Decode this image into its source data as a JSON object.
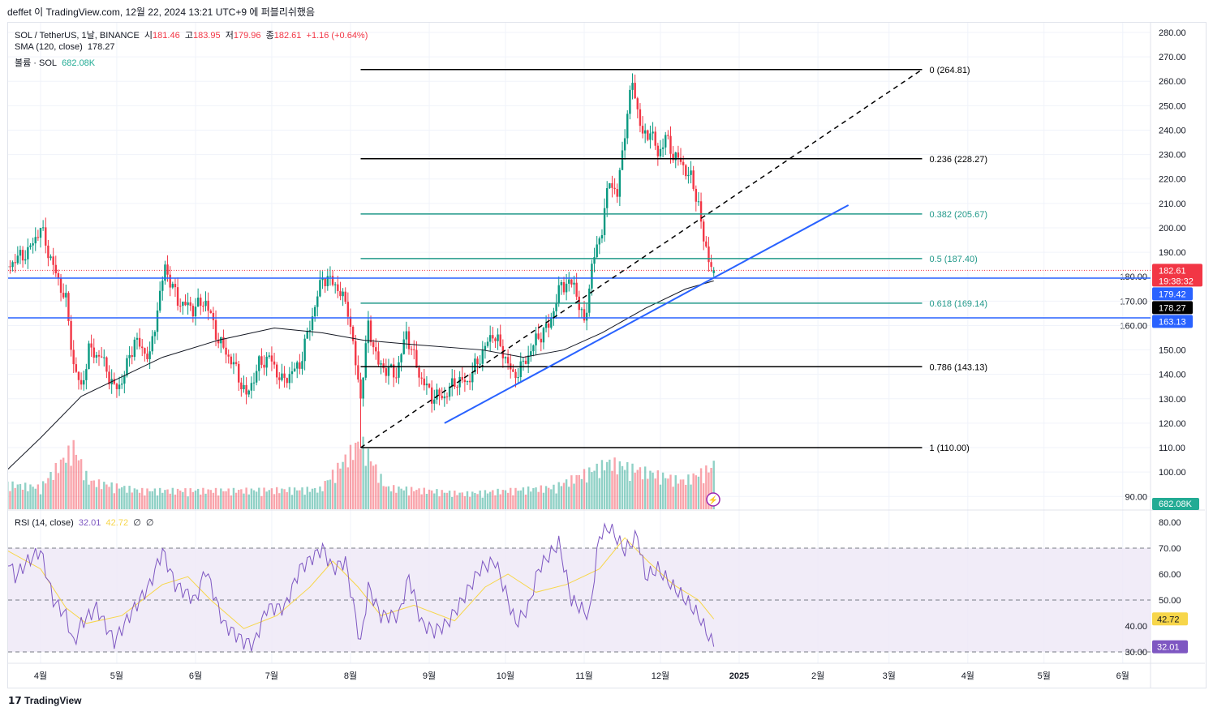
{
  "header": {
    "published": "deffet 이 TradingView.com, 12월 22, 2024 13:21 UTC+9 에 퍼블리쉬했음"
  },
  "legend": {
    "symbol": "SOL / TetherUS, 1날, BINANCE",
    "o_label": "시",
    "o": "181.46",
    "h_label": "고",
    "h": "183.95",
    "l_label": "저",
    "l": "179.96",
    "c_label": "종",
    "c": "182.61",
    "change": "+1.16 (+0.64%)",
    "sma_label": "SMA (120, close)",
    "sma_value": "178.27",
    "vol_label": "볼륨 · SOL",
    "vol_value": "682.08K",
    "rsi_label": "RSI (14, close)",
    "rsi_value": "32.01",
    "rsi_ma_value": "42.72",
    "rsi_extra1": "∅",
    "rsi_extra2": "∅"
  },
  "logo": "TradingView",
  "colors": {
    "up": "#089981",
    "down": "#f23645",
    "sma": "#131722",
    "trend": "#2962ff",
    "fib_black": "#000000",
    "fib_teal": "#22998a",
    "rsi": "#7e57c2",
    "rsi_ma": "#f7d64a",
    "rsi_band": "#ede7f6"
  },
  "chart_data": {
    "type": "candlestick",
    "price_axis": {
      "ticks": [
        "280.00",
        "270.00",
        "260.00",
        "250.00",
        "240.00",
        "230.00",
        "220.00",
        "210.00",
        "200.00",
        "190.00",
        "180.00",
        "170.00",
        "160.00",
        "150.00",
        "140.00",
        "130.00",
        "120.00",
        "110.00",
        "100.00",
        "90.00"
      ],
      "ylim": [
        90,
        280
      ]
    },
    "x_ticks": [
      [
        "2024-04-01",
        "4월"
      ],
      [
        "2024-05-01",
        "5월"
      ],
      [
        "2024-06-01",
        "6월"
      ],
      [
        "2024-07-01",
        "7월"
      ],
      [
        "2024-08-01",
        "8월"
      ],
      [
        "2024-09-01",
        "9월"
      ],
      [
        "2024-10-01",
        "10월"
      ],
      [
        "2024-11-01",
        "11월"
      ],
      [
        "2024-12-01",
        "12월"
      ],
      [
        "2025-01-01",
        "2025"
      ],
      [
        "2025-02-01",
        "2월"
      ],
      [
        "2025-03-01",
        "3월"
      ],
      [
        "2025-04-01",
        "4월"
      ],
      [
        "2025-05-01",
        "5월"
      ],
      [
        "2025-06-01",
        "6월"
      ]
    ],
    "close_keypoints": [
      [
        "2024-03-19",
        184
      ],
      [
        "2024-03-22",
        187
      ],
      [
        "2024-03-27",
        190
      ],
      [
        "2024-04-01",
        200
      ],
      [
        "2024-04-06",
        184
      ],
      [
        "2024-04-11",
        170
      ],
      [
        "2024-04-14",
        144
      ],
      [
        "2024-04-17",
        134
      ],
      [
        "2024-04-20",
        150
      ],
      [
        "2024-04-25",
        147
      ],
      [
        "2024-04-30",
        134
      ],
      [
        "2024-05-03",
        137
      ],
      [
        "2024-05-08",
        154
      ],
      [
        "2024-05-14",
        147
      ],
      [
        "2024-05-17",
        167
      ],
      [
        "2024-05-20",
        184
      ],
      [
        "2024-05-25",
        170
      ],
      [
        "2024-05-31",
        167
      ],
      [
        "2024-06-05",
        170
      ],
      [
        "2024-06-10",
        154
      ],
      [
        "2024-06-16",
        144
      ],
      [
        "2024-06-21",
        131
      ],
      [
        "2024-06-26",
        144
      ],
      [
        "2024-06-30",
        147
      ],
      [
        "2024-07-05",
        137
      ],
      [
        "2024-07-12",
        144
      ],
      [
        "2024-07-16",
        160
      ],
      [
        "2024-07-21",
        180
      ],
      [
        "2024-07-26",
        177
      ],
      [
        "2024-07-31",
        167
      ],
      [
        "2024-08-03",
        144
      ],
      [
        "2024-08-05",
        131
      ],
      [
        "2024-08-08",
        160
      ],
      [
        "2024-08-12",
        144
      ],
      [
        "2024-08-19",
        140
      ],
      [
        "2024-08-23",
        157
      ],
      [
        "2024-08-28",
        140
      ],
      [
        "2024-09-02",
        131
      ],
      [
        "2024-09-07",
        131
      ],
      [
        "2024-09-11",
        137
      ],
      [
        "2024-09-16",
        137
      ],
      [
        "2024-09-21",
        147
      ],
      [
        "2024-09-26",
        157
      ],
      [
        "2024-10-01",
        147
      ],
      [
        "2024-10-04",
        139
      ],
      [
        "2024-10-08",
        144
      ],
      [
        "2024-10-13",
        154
      ],
      [
        "2024-10-18",
        160
      ],
      [
        "2024-10-23",
        177
      ],
      [
        "2024-10-28",
        177
      ],
      [
        "2024-11-01",
        160
      ],
      [
        "2024-11-04",
        184
      ],
      [
        "2024-11-08",
        200
      ],
      [
        "2024-11-11",
        220
      ],
      [
        "2024-11-14",
        213
      ],
      [
        "2024-11-17",
        240
      ],
      [
        "2024-11-20",
        260
      ],
      [
        "2024-11-24",
        237
      ],
      [
        "2024-11-27",
        240
      ],
      [
        "2024-11-30",
        230
      ],
      [
        "2024-12-03",
        237
      ],
      [
        "2024-12-06",
        230
      ],
      [
        "2024-12-09",
        227
      ],
      [
        "2024-12-13",
        220
      ],
      [
        "2024-12-16",
        210
      ],
      [
        "2024-12-18",
        194
      ],
      [
        "2024-12-22",
        182.61
      ]
    ],
    "last_ohlc": {
      "open": 181.46,
      "high": 183.95,
      "low": 179.96,
      "close": 182.61
    },
    "sma120": [
      [
        "2024-03-19",
        101
      ],
      [
        "2024-04-01",
        114
      ],
      [
        "2024-04-17",
        131
      ],
      [
        "2024-05-03",
        139
      ],
      [
        "2024-05-19",
        147
      ],
      [
        "2024-06-10",
        154
      ],
      [
        "2024-07-02",
        159
      ],
      [
        "2024-07-21",
        157
      ],
      [
        "2024-08-06",
        154
      ],
      [
        "2024-08-28",
        152
      ],
      [
        "2024-09-22",
        150
      ],
      [
        "2024-10-08",
        147
      ],
      [
        "2024-10-24",
        150
      ],
      [
        "2024-11-08",
        157
      ],
      [
        "2024-11-25",
        167
      ],
      [
        "2024-12-11",
        175
      ],
      [
        "2024-12-22",
        178.27
      ]
    ],
    "volume_k": [
      [
        "2024-03-19",
        400
      ],
      [
        "2024-04-01",
        350
      ],
      [
        "2024-04-14",
        1000
      ],
      [
        "2024-04-20",
        450
      ],
      [
        "2024-05-10",
        300
      ],
      [
        "2024-06-15",
        300
      ],
      [
        "2024-07-20",
        320
      ],
      [
        "2024-08-05",
        1100
      ],
      [
        "2024-08-15",
        350
      ],
      [
        "2024-09-15",
        250
      ],
      [
        "2024-10-20",
        350
      ],
      [
        "2024-11-11",
        750
      ],
      [
        "2024-11-20",
        650
      ],
      [
        "2024-12-10",
        450
      ],
      [
        "2024-12-22",
        682.08
      ]
    ],
    "fib": {
      "start": "2024-08-05",
      "end": "2025-03-14",
      "levels": [
        {
          "ratio": 0,
          "price": 264.81,
          "label": "0 (264.81)",
          "color": "black"
        },
        {
          "ratio": 0.236,
          "price": 228.27,
          "label": "0.236 (228.27)",
          "color": "black"
        },
        {
          "ratio": 0.382,
          "price": 205.67,
          "label": "0.382 (205.67)",
          "color": "teal"
        },
        {
          "ratio": 0.5,
          "price": 187.4,
          "label": "0.5 (187.40)",
          "color": "teal"
        },
        {
          "ratio": 0.618,
          "price": 169.14,
          "label": "0.618 (169.14)",
          "color": "teal"
        },
        {
          "ratio": 0.786,
          "price": 143.13,
          "label": "0.786 (143.13)",
          "color": "black"
        },
        {
          "ratio": 1,
          "price": 110.0,
          "label": "1 (110.00)",
          "color": "black"
        }
      ]
    },
    "fib_trendline": [
      [
        "2024-08-05",
        110.0
      ],
      [
        "2025-03-14",
        264.81
      ]
    ],
    "trendline": [
      [
        "2024-09-07",
        120
      ],
      [
        "2025-02-13",
        209.3
      ]
    ],
    "horizontal_lines": [
      179.42,
      163.13
    ],
    "price_tags": [
      {
        "value": "182.61",
        "sub": "19:38:32",
        "color": "#f23645",
        "price": 182.61
      },
      {
        "value": "179.42",
        "color": "#2962ff",
        "price": 179.42
      },
      {
        "value": "178.27",
        "color": "#000000",
        "price": 178.27
      },
      {
        "value": "163.13",
        "color": "#2962ff",
        "price": 163.13
      }
    ],
    "volume_tag": "682.08K",
    "rsi": {
      "axis_ticks": [
        "80.00",
        "70.00",
        "60.00",
        "50.00",
        "40.00",
        "30.00"
      ],
      "bands": [
        30,
        50,
        70
      ],
      "values": [
        [
          "2024-03-19",
          65.6
        ],
        [
          "2024-03-22",
          59
        ],
        [
          "2024-03-27",
          65
        ],
        [
          "2024-04-01",
          69
        ],
        [
          "2024-04-06",
          50
        ],
        [
          "2024-04-11",
          44
        ],
        [
          "2024-04-14",
          33
        ],
        [
          "2024-04-17",
          41
        ],
        [
          "2024-04-23",
          47
        ],
        [
          "2024-04-30",
          34
        ],
        [
          "2024-05-06",
          44
        ],
        [
          "2024-05-14",
          56
        ],
        [
          "2024-05-19",
          69
        ],
        [
          "2024-05-24",
          56
        ],
        [
          "2024-06-01",
          50
        ],
        [
          "2024-06-05",
          62
        ],
        [
          "2024-06-12",
          41
        ],
        [
          "2024-06-20",
          34
        ],
        [
          "2024-06-24",
          33
        ],
        [
          "2024-06-29",
          47
        ],
        [
          "2024-07-06",
          47
        ],
        [
          "2024-07-12",
          62
        ],
        [
          "2024-07-21",
          70
        ],
        [
          "2024-07-25",
          62
        ],
        [
          "2024-07-30",
          65
        ],
        [
          "2024-08-04",
          38
        ],
        [
          "2024-08-05",
          33
        ],
        [
          "2024-08-08",
          55
        ],
        [
          "2024-08-13",
          44
        ],
        [
          "2024-08-20",
          44
        ],
        [
          "2024-08-24",
          59
        ],
        [
          "2024-08-29",
          41
        ],
        [
          "2024-09-03",
          38
        ],
        [
          "2024-09-08",
          41
        ],
        [
          "2024-09-14",
          50
        ],
        [
          "2024-09-21",
          62
        ],
        [
          "2024-09-27",
          65
        ],
        [
          "2024-10-02",
          50
        ],
        [
          "2024-10-05",
          41
        ],
        [
          "2024-10-10",
          47
        ],
        [
          "2024-10-14",
          62
        ],
        [
          "2024-10-22",
          72
        ],
        [
          "2024-10-27",
          50
        ],
        [
          "2024-11-03",
          44
        ],
        [
          "2024-11-07",
          75
        ],
        [
          "2024-11-11",
          78
        ],
        [
          "2024-11-17",
          69
        ],
        [
          "2024-11-22",
          75
        ],
        [
          "2024-11-25",
          59
        ],
        [
          "2024-11-30",
          62
        ],
        [
          "2024-12-06",
          55
        ],
        [
          "2024-12-11",
          50
        ],
        [
          "2024-12-16",
          44
        ],
        [
          "2024-12-19",
          38
        ],
        [
          "2024-12-22",
          32.01
        ]
      ],
      "ma": [
        [
          "2024-03-19",
          69
        ],
        [
          "2024-04-01",
          62
        ],
        [
          "2024-04-11",
          47
        ],
        [
          "2024-04-19",
          41
        ],
        [
          "2024-05-03",
          44
        ],
        [
          "2024-05-19",
          56
        ],
        [
          "2024-05-29",
          59
        ],
        [
          "2024-06-07",
          50
        ],
        [
          "2024-06-20",
          39
        ],
        [
          "2024-07-03",
          44
        ],
        [
          "2024-07-16",
          55
        ],
        [
          "2024-07-25",
          65
        ],
        [
          "2024-08-04",
          55
        ],
        [
          "2024-08-13",
          44
        ],
        [
          "2024-08-26",
          48
        ],
        [
          "2024-09-11",
          42
        ],
        [
          "2024-09-23",
          55
        ],
        [
          "2024-10-02",
          60
        ],
        [
          "2024-10-13",
          53
        ],
        [
          "2024-10-25",
          56
        ],
        [
          "2024-11-07",
          62
        ],
        [
          "2024-11-17",
          74
        ],
        [
          "2024-11-26",
          65
        ],
        [
          "2024-12-06",
          56
        ],
        [
          "2024-12-16",
          50
        ],
        [
          "2024-12-22",
          42.72
        ]
      ],
      "tags": [
        {
          "value": "42.72",
          "color": "#f7d64a",
          "text": "#131722",
          "rsi": 42.72
        },
        {
          "value": "32.01",
          "color": "#7e57c2",
          "text": "#ffffff",
          "rsi": 32.01
        }
      ]
    }
  }
}
